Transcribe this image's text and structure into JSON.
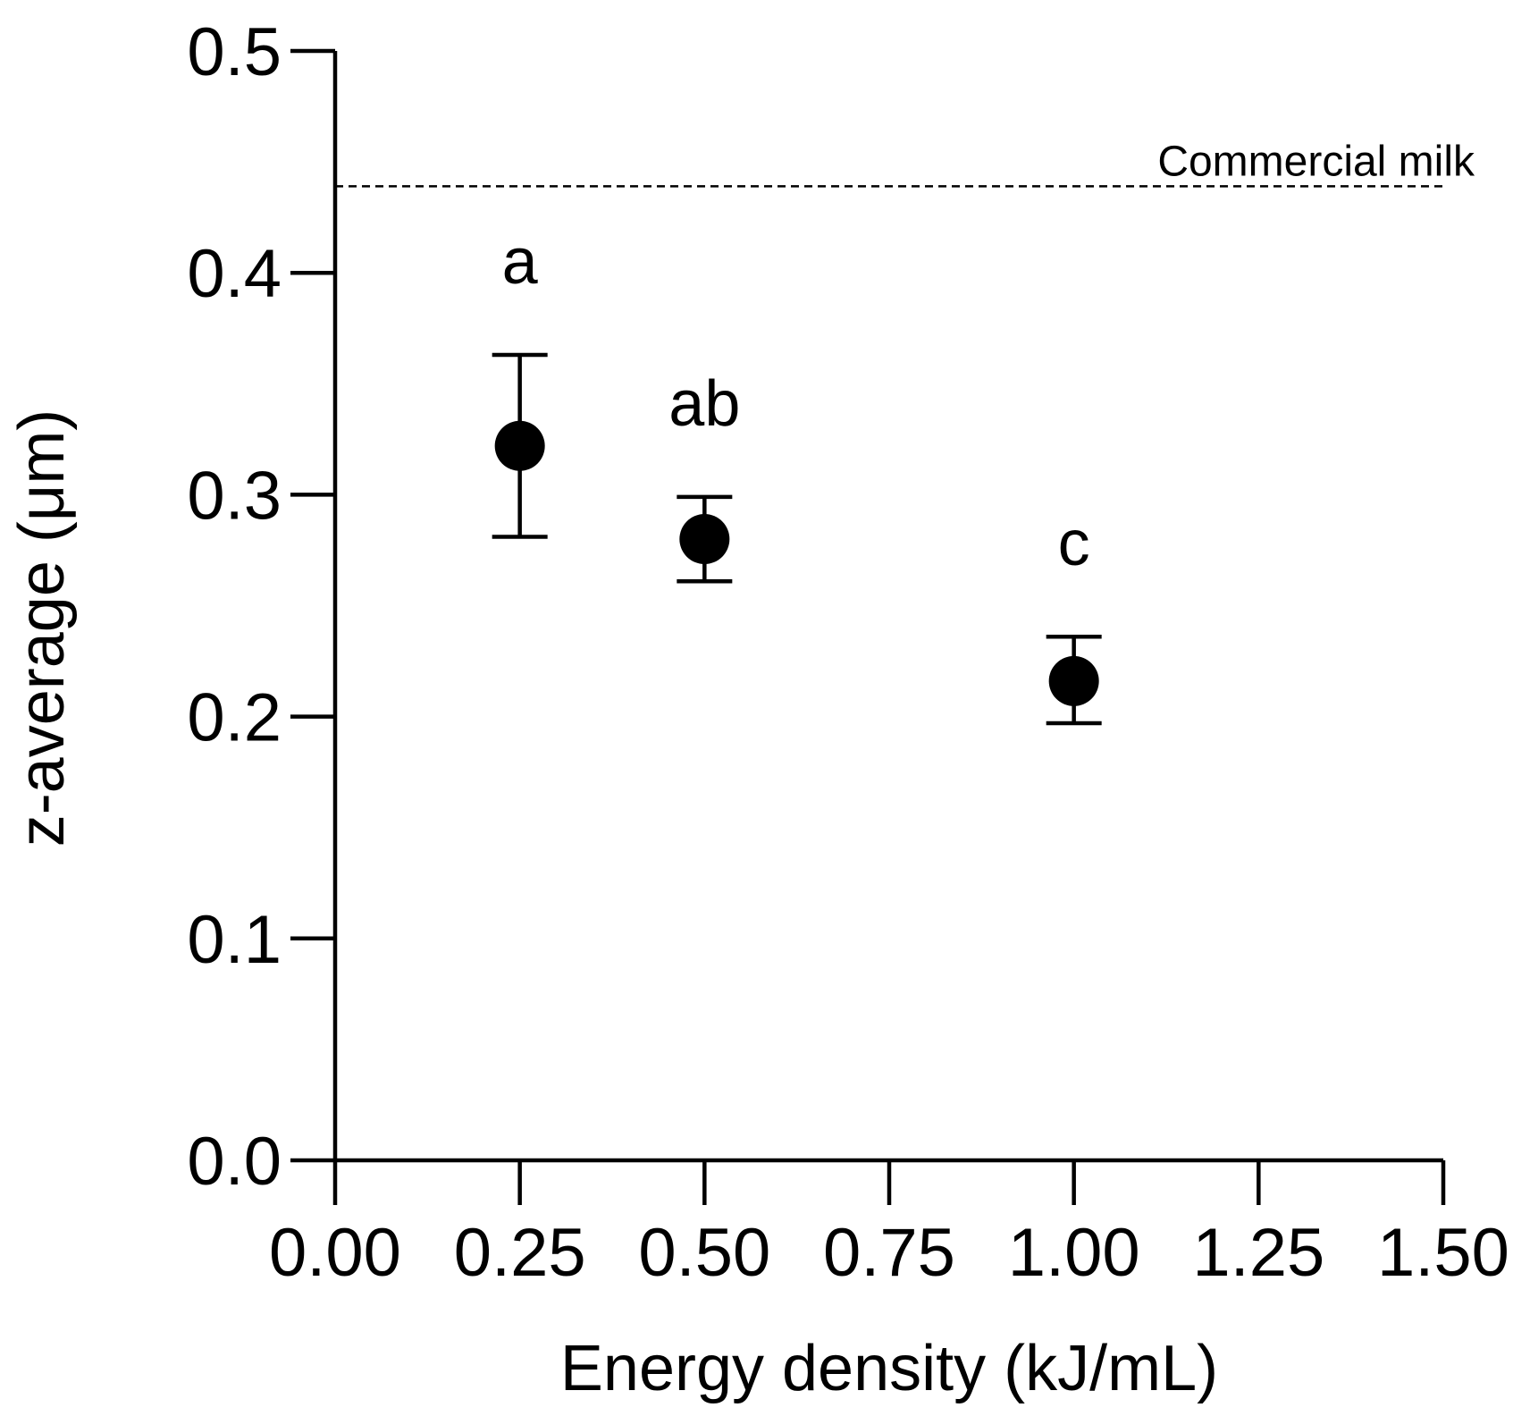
{
  "chart_data": {
    "type": "scatter",
    "title": "",
    "xlabel": "Energy density (kJ/mL)",
    "ylabel": "z-average (μm)",
    "xlim": [
      0,
      1.5
    ],
    "ylim": [
      0,
      0.5
    ],
    "grid": false,
    "x_ticks": [
      0,
      0.25,
      0.5,
      0.75,
      1.0,
      1.25,
      1.5
    ],
    "x_tick_labels": [
      "0.00",
      "0.25",
      "0.50",
      "0.75",
      "1.00",
      "1.25",
      "1.50"
    ],
    "y_ticks": [
      0,
      0.1,
      0.2,
      0.3,
      0.4,
      0.5
    ],
    "y_tick_labels": [
      "0.0",
      "0.1",
      "0.2",
      "0.3",
      "0.4",
      "0.5"
    ],
    "series": [
      {
        "name": "z-average",
        "color": "#000000",
        "points": [
          {
            "x": 0.25,
            "y": 0.322,
            "err_low": 0.281,
            "err_high": 0.363,
            "label": "a"
          },
          {
            "x": 0.5,
            "y": 0.28,
            "err_low": 0.261,
            "err_high": 0.299,
            "label": "ab"
          },
          {
            "x": 1.0,
            "y": 0.216,
            "err_low": 0.197,
            "err_high": 0.236,
            "label": "c"
          }
        ]
      }
    ],
    "reference_line": {
      "y": 0.439,
      "label": "Commercial milk",
      "style": "dashed",
      "color": "#000000"
    }
  }
}
